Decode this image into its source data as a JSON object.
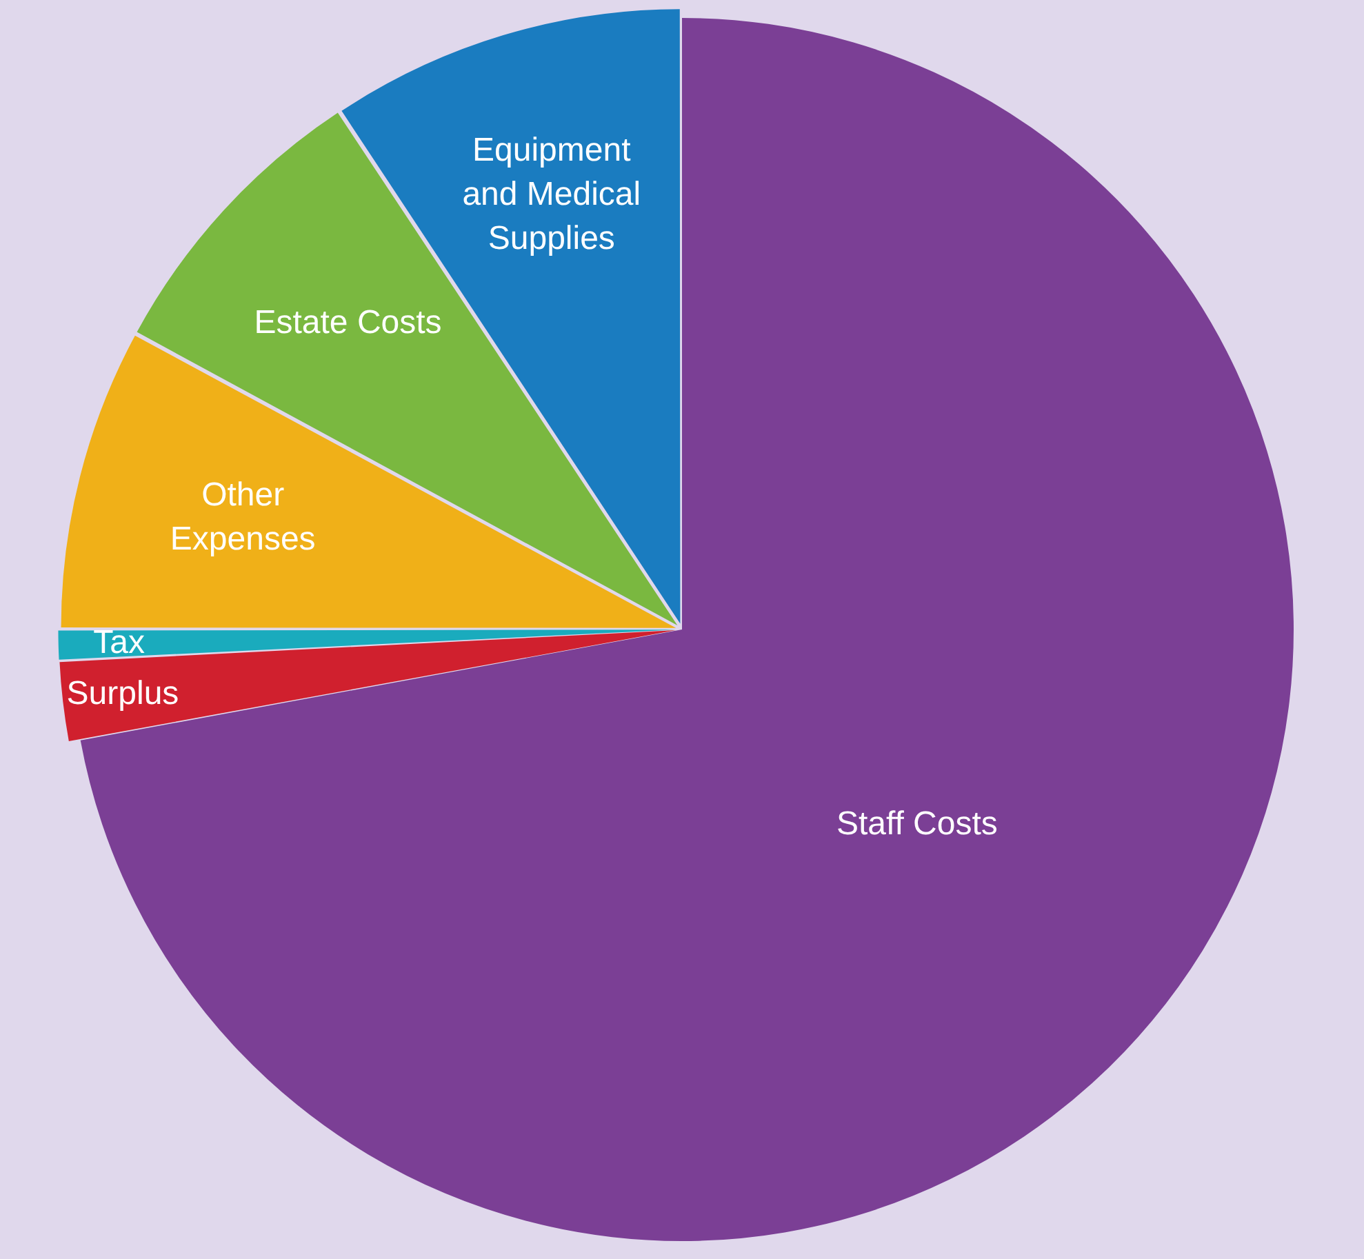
{
  "chart_data": {
    "type": "pie",
    "categories": [
      "Staff Costs",
      "Surplus",
      "Tax",
      "Other Expenses",
      "Estate Costs",
      "Equipment and Medical Supplies"
    ],
    "values": [
      72.1,
      2.1,
      0.8,
      7.9,
      7.8,
      9.3
    ],
    "colors": [
      "#7b3f95",
      "#d0202e",
      "#1aabbd",
      "#f0b018",
      "#7ab840",
      "#1a7cc0"
    ],
    "legend": false
  }
}
